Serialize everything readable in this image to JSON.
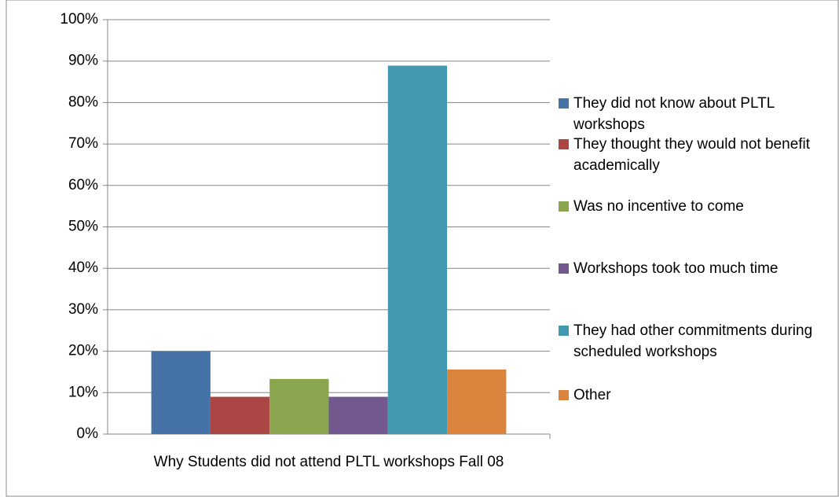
{
  "chart_data": {
    "type": "bar",
    "categories": [
      "Why Students did not attend PLTL workshops Fall 08"
    ],
    "series": [
      {
        "name": "They did not know about PLTL workshops",
        "color": "#4572a7",
        "values": [
          20
        ]
      },
      {
        "name": "They thought they would not benefit academically",
        "color": "#aa4643",
        "values": [
          9
        ]
      },
      {
        "name": "Was no incentive to come",
        "color": "#89a54e",
        "values": [
          13.3
        ]
      },
      {
        "name": "Workshops took too much time",
        "color": "#71588f",
        "values": [
          9
        ]
      },
      {
        "name": "They had other commitments during scheduled workshops",
        "color": "#4198af",
        "values": [
          88.9
        ]
      },
      {
        "name": "Other",
        "color": "#db843d",
        "values": [
          15.6
        ]
      }
    ],
    "ylim": [
      0,
      100
    ],
    "yticks": [
      {
        "value": 0,
        "label": "0%"
      },
      {
        "value": 10,
        "label": "10%"
      },
      {
        "value": 20,
        "label": "20%"
      },
      {
        "value": 30,
        "label": "30%"
      },
      {
        "value": 40,
        "label": "40%"
      },
      {
        "value": 50,
        "label": "50%"
      },
      {
        "value": 60,
        "label": "60%"
      },
      {
        "value": 70,
        "label": "70%"
      },
      {
        "value": 80,
        "label": "80%"
      },
      {
        "value": 90,
        "label": "90%"
      },
      {
        "value": 100,
        "label": "100%"
      }
    ],
    "grid": true,
    "legend": "right"
  }
}
